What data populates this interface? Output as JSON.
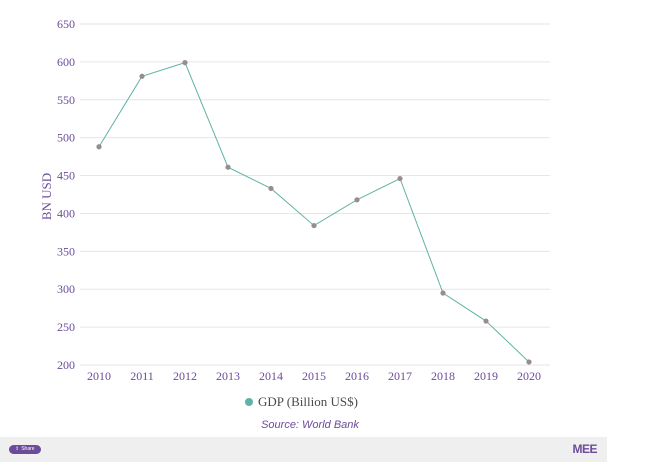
{
  "chart_data": {
    "type": "line",
    "ylabel": "BN USD",
    "ylim": [
      200,
      650
    ],
    "yticks": [
      650,
      600,
      550,
      500,
      450,
      400,
      350,
      300,
      250,
      200
    ],
    "grid": true,
    "categories": [
      "2010",
      "2011",
      "2012",
      "2013",
      "2014",
      "2015",
      "2016",
      "2017",
      "2018",
      "2019",
      "2020"
    ],
    "series": [
      {
        "name": "GDP (Billion US$)",
        "values": [
          488,
          581,
          599,
          461,
          433,
          384,
          418,
          446,
          295,
          258,
          204
        ]
      }
    ],
    "colors": {
      "line": "#5fb3a6",
      "marker": "#9a8c8c",
      "text": "#6b4c9a"
    }
  },
  "legend": {
    "label": "GDP (Billion US$)",
    "icon": "circle-marker-icon"
  },
  "source": "Source: World Bank",
  "footer": {
    "share_label": "Share",
    "share_icon": "share-icon",
    "logo_text": "MEE"
  }
}
